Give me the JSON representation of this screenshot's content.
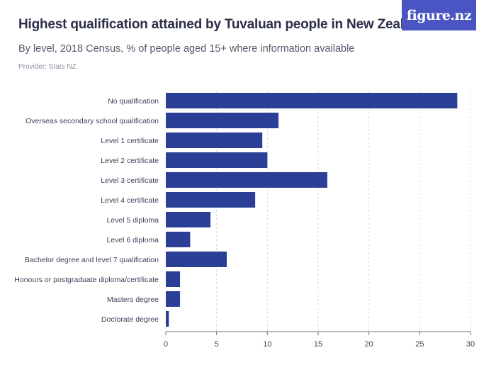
{
  "header": {
    "title": "Highest qualification attained by Tuvaluan people in New Zealand",
    "subtitle": "By level, 2018 Census, % of people aged 15+ where information available",
    "provider": "Provider: Stats NZ",
    "logo_text": "figure.nz"
  },
  "colors": {
    "bar": "#2b3f97",
    "grid": "#d7d9e2",
    "axis": "#6b6f85",
    "logo_bg": "#4a54c2"
  },
  "chart_data": {
    "type": "bar",
    "orientation": "horizontal",
    "categories": [
      "No qualification",
      "Overseas secondary school qualification",
      "Level 1 certificate",
      "Level 2 certificate",
      "Level 3 certificate",
      "Level 4 certificate",
      "Level 5 diploma",
      "Level 6 diploma",
      "Bachelor degree and level 7 qualification",
      "Honours or postgraduate diploma/certificate",
      "Masters degree",
      "Doctorate degree"
    ],
    "values": [
      28.7,
      11.1,
      9.5,
      10.0,
      15.9,
      8.8,
      4.4,
      2.4,
      6.0,
      1.4,
      1.4,
      0.3
    ],
    "xlim": [
      0,
      30
    ],
    "xticks": [
      0,
      5,
      10,
      15,
      20,
      25,
      30
    ],
    "grid": true
  }
}
